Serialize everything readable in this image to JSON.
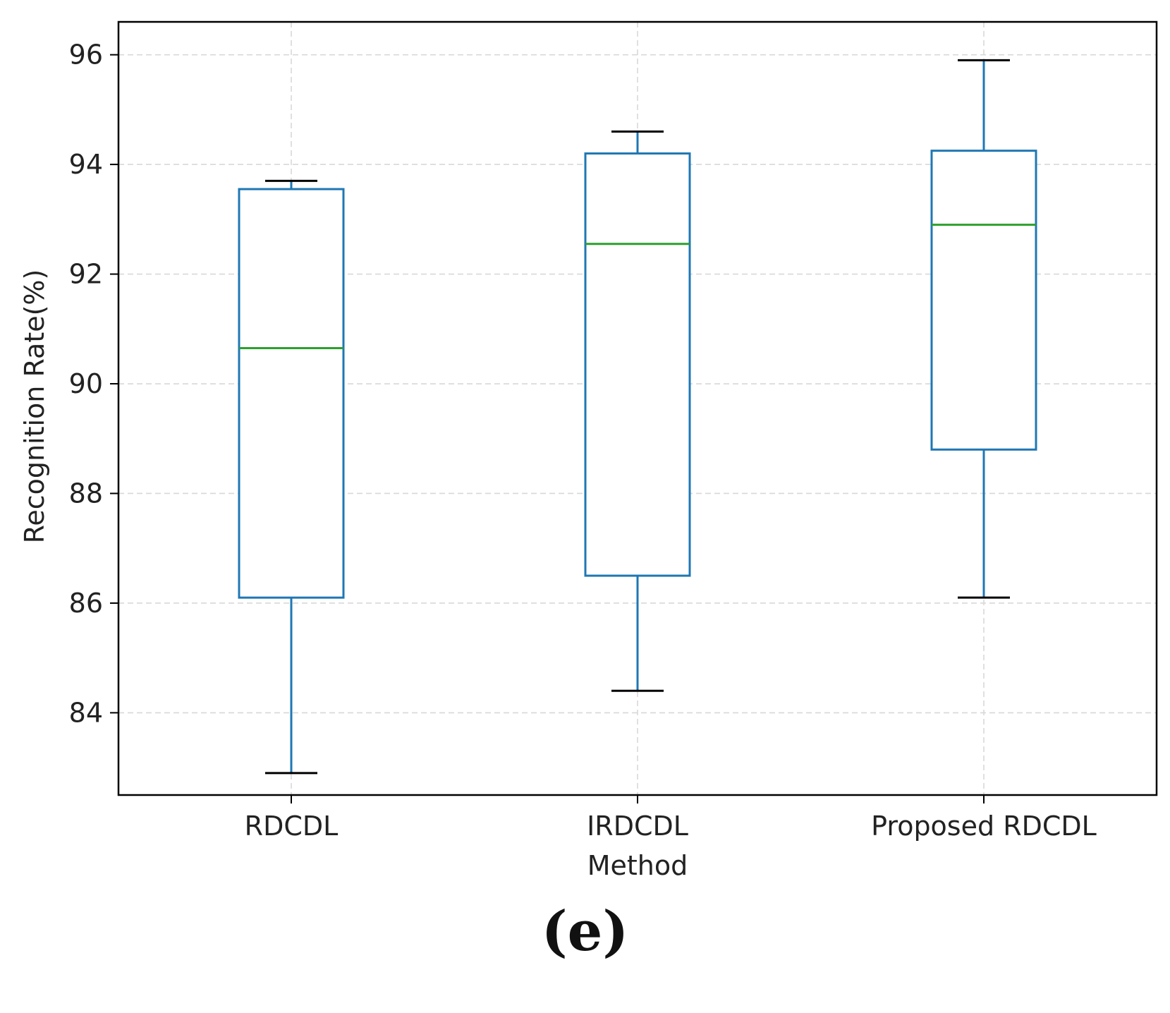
{
  "chart_data": {
    "type": "box",
    "title": "",
    "xlabel": "Method",
    "ylabel": "Recognition Rate(%)",
    "ylim": [
      82.5,
      96.6
    ],
    "yticks": [
      84,
      86,
      88,
      90,
      92,
      94,
      96
    ],
    "grid": true,
    "categories": [
      "RDCDL",
      "IRDCDL",
      "Proposed RDCDL"
    ],
    "boxes": [
      {
        "name": "RDCDL",
        "whisker_low": 82.9,
        "q1": 86.1,
        "median": 90.65,
        "q3": 93.55,
        "whisker_high": 93.7
      },
      {
        "name": "IRDCDL",
        "whisker_low": 84.4,
        "q1": 86.5,
        "median": 92.55,
        "q3": 94.2,
        "whisker_high": 94.6
      },
      {
        "name": "Proposed RDCDL",
        "whisker_low": 86.1,
        "q1": 88.8,
        "median": 92.9,
        "q3": 94.25,
        "whisker_high": 95.9
      }
    ],
    "colors": {
      "box": "#1f77b4",
      "median": "#2ca02c",
      "cap": "#000000",
      "grid": "#d8d8d8",
      "frame": "#000000"
    }
  },
  "panel_label": "(e)"
}
